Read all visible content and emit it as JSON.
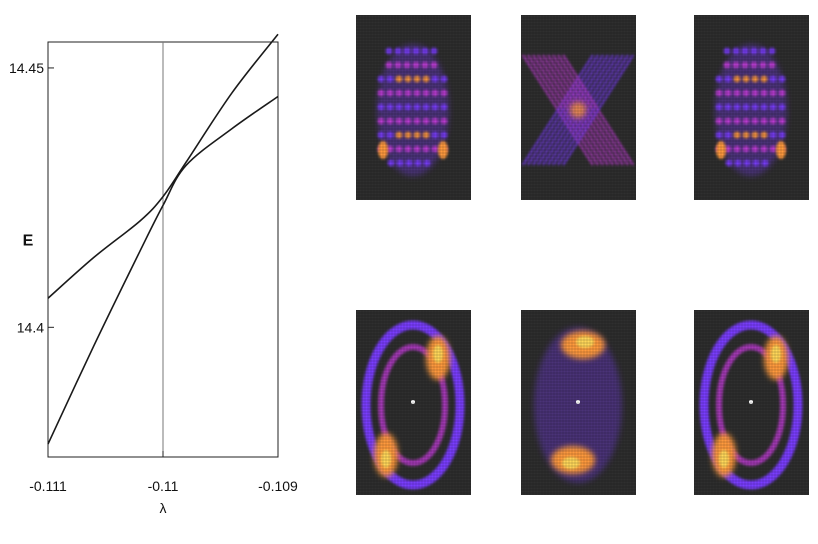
{
  "chart_data": {
    "type": "line",
    "xlabel": "λ",
    "ylabel": "E",
    "xlim": [
      -0.111,
      -0.109
    ],
    "ylim": [
      14.375,
      14.455
    ],
    "x_ticks": [
      -0.111,
      -0.11,
      -0.109
    ],
    "x_tick_labels": [
      "-0.111",
      "-0.11",
      "-0.109"
    ],
    "y_ticks": [
      14.4,
      14.45
    ],
    "y_tick_labels": [
      "14.4",
      "14.45"
    ],
    "vline_x": -0.11,
    "grid": false,
    "series": [
      {
        "x": [
          -0.111,
          -0.1106,
          -0.1102,
          -0.11,
          -0.1098,
          -0.1094,
          -0.109
        ],
        "y": [
          14.3775,
          14.3965,
          14.4147,
          14.4235,
          14.4312,
          14.4383,
          14.4445
        ]
      },
      {
        "x": [
          -0.111,
          -0.1106,
          -0.1102,
          -0.11,
          -0.1098,
          -0.1094,
          -0.109
        ],
        "y": [
          14.4056,
          14.4135,
          14.4205,
          14.4252,
          14.4318,
          14.4452,
          14.4565
        ]
      }
    ]
  },
  "panels": {
    "top": [
      {
        "palette": "violet-orange",
        "pattern": "lattice-wide"
      },
      {
        "palette": "violet-orange",
        "pattern": "diagonal-x"
      },
      {
        "palette": "violet-orange",
        "pattern": "lattice-wide"
      }
    ],
    "bottom": [
      {
        "palette": "violet-orange",
        "pattern": "ring-two-lobes"
      },
      {
        "palette": "violet-orange",
        "pattern": "ring-caps"
      },
      {
        "palette": "violet-orange",
        "pattern": "ring-two-lobes"
      }
    ]
  },
  "colors": {
    "line": "#1a1a1a",
    "axis": "#222222",
    "panel_bg": "#2f2f2f",
    "violet": "#7a3cff",
    "magenta": "#c23cd8",
    "orange": "#ff9a3c",
    "yellow": "#ffd85a"
  }
}
